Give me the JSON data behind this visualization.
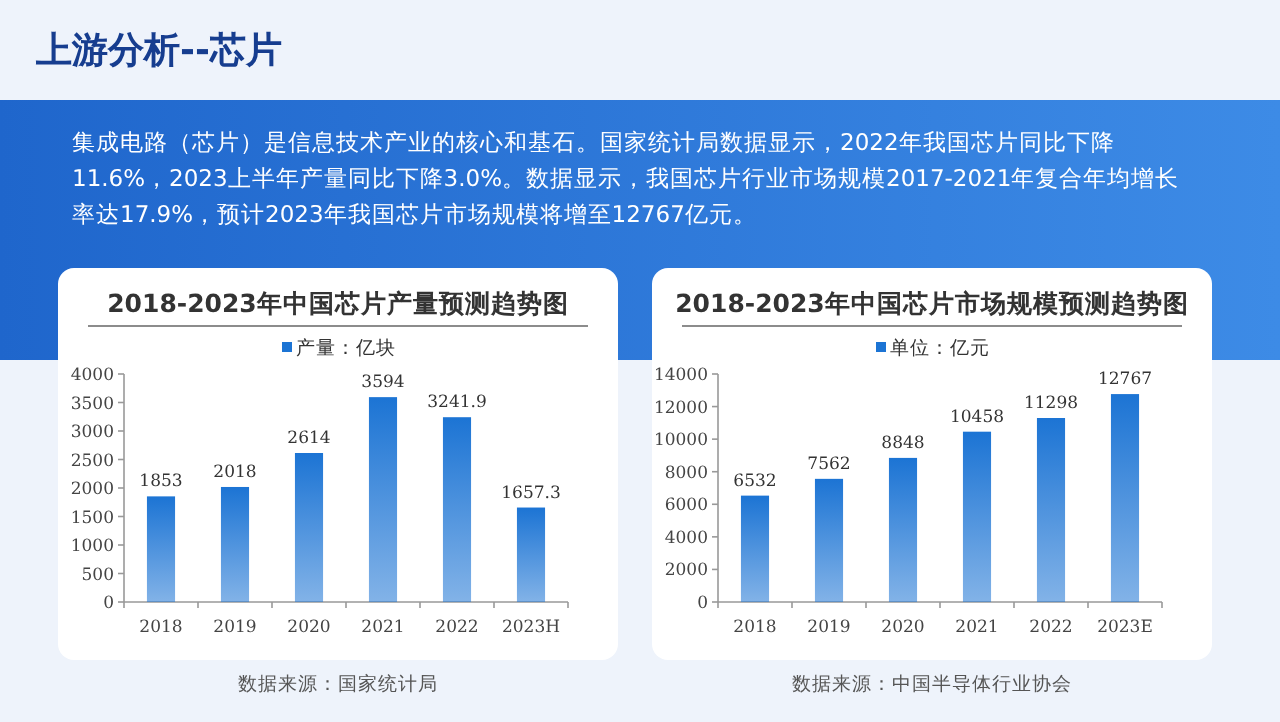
{
  "chart_data": [
    {
      "type": "other",
      "title": "上游分析--芯片",
      "annotations": [
        "集成电路（芯片）是信息技术产业的核心和基石。国家统计局数据显示，2022年我国芯片同比下降11.6%，2023上半年产量同比下降3.0%。数据显示，我国芯片行业市场规模2017-2021年复合年均增长率达17.9%，预计2023年我国芯片市场规模将增至12767亿元。"
      ]
    },
    {
      "type": "bar",
      "title": "2018-2023年中国芯片产量预测趋势图",
      "categories": [
        "2018",
        "2019",
        "2020",
        "2021",
        "2022",
        "2023H"
      ],
      "series": [
        {
          "name": "产量：亿块",
          "color": "#1c74d4",
          "values": [
            1853,
            2018,
            2614,
            3594,
            3241.9,
            1657.3
          ]
        }
      ],
      "ylim": [
        0,
        4000
      ],
      "yticks": [
        0,
        500,
        1000,
        1500,
        2000,
        2500,
        3000,
        3500,
        4000
      ],
      "data_labels": true,
      "legend": "top",
      "annotations": [
        "数据来源：国家统计局"
      ]
    },
    {
      "type": "bar",
      "title": "2018-2023年中国芯片市场规模预测趋势图",
      "categories": [
        "2018",
        "2019",
        "2020",
        "2021",
        "2022",
        "2023E"
      ],
      "series": [
        {
          "name": "单位：亿元",
          "color": "#1c74d4",
          "values": [
            6532,
            7562,
            8848,
            10458,
            11298,
            12767
          ]
        }
      ],
      "ylim": [
        0,
        14000
      ],
      "yticks": [
        0,
        2000,
        4000,
        6000,
        8000,
        10000,
        12000,
        14000
      ],
      "data_labels": true,
      "legend": "top",
      "annotations": [
        "数据来源：中国半导体行业协会"
      ]
    }
  ]
}
